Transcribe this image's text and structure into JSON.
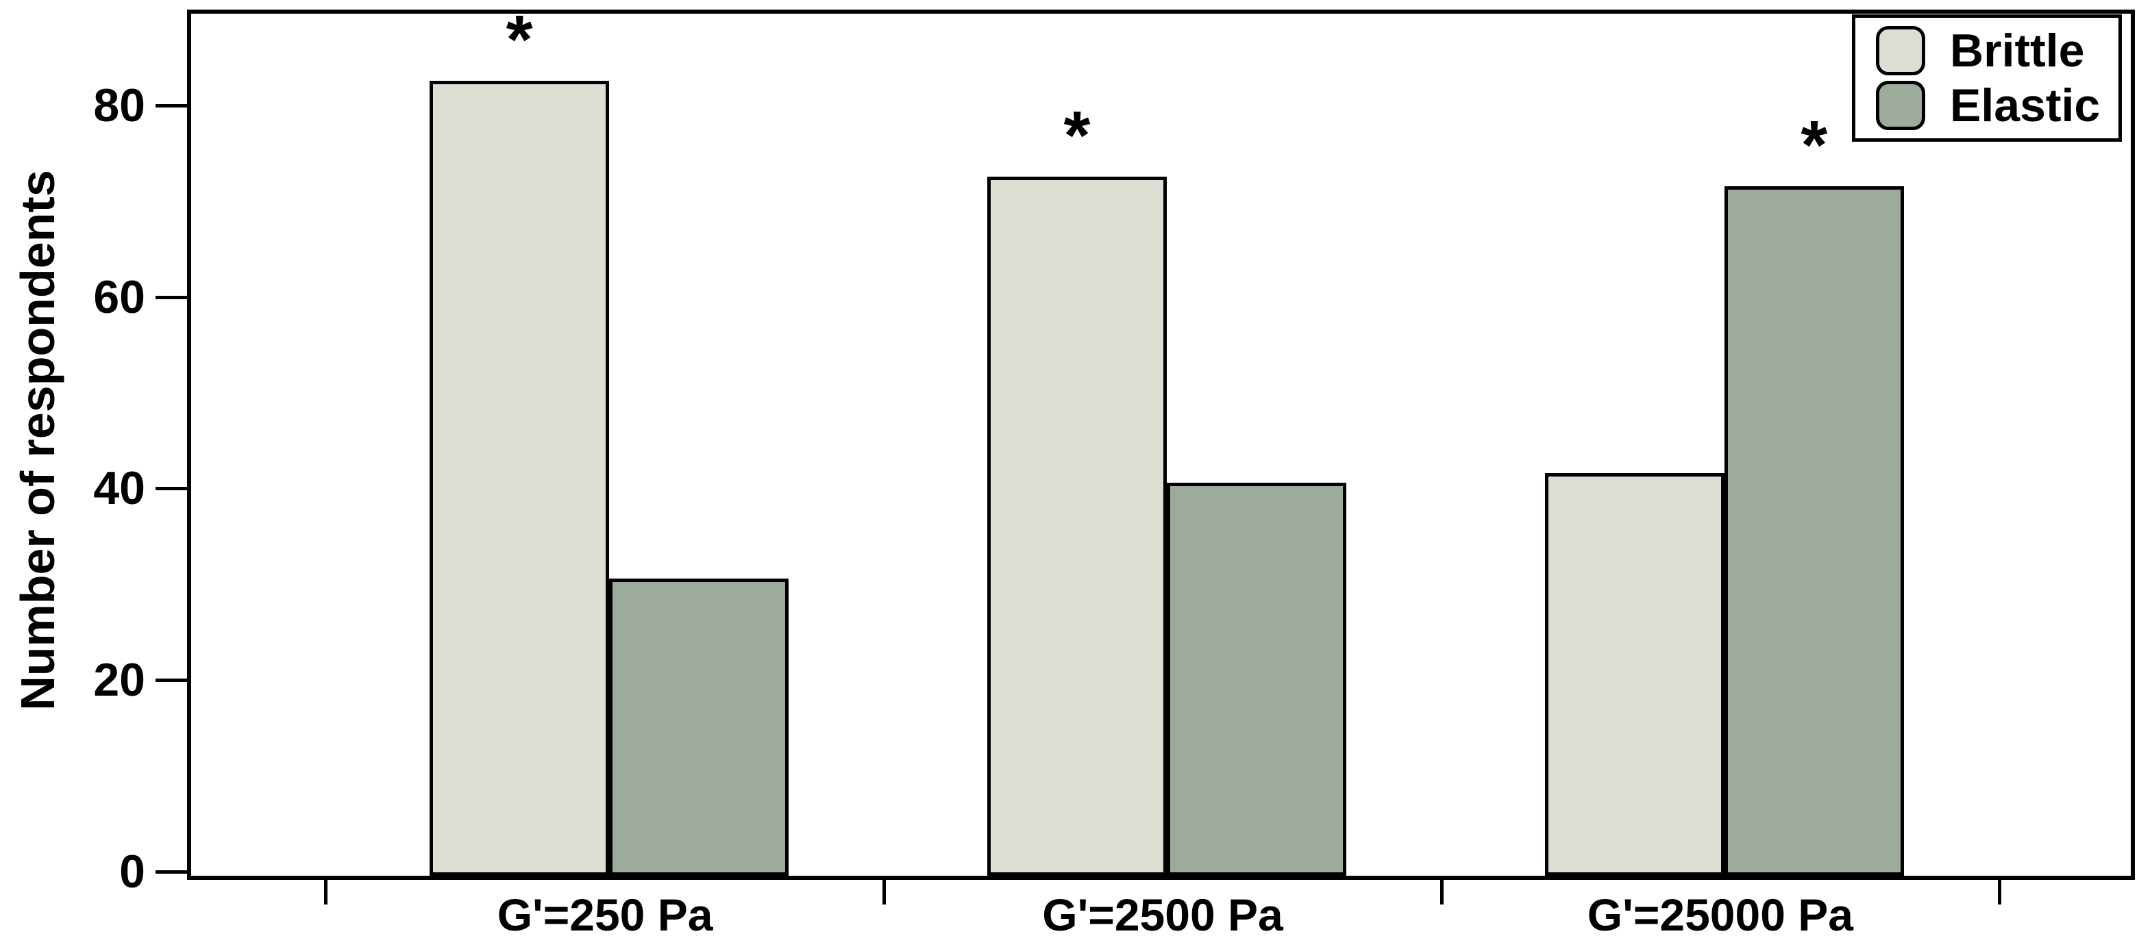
{
  "figure": {
    "background": "#ffffff",
    "frame_color": "#000000"
  },
  "chart_data": {
    "type": "bar",
    "title": "",
    "xlabel": "",
    "ylabel": "Number of respondents",
    "categories": [
      "G'=250 Pa",
      "G'=2500 Pa",
      "G'=25000 Pa"
    ],
    "series": [
      {
        "name": "Brittle",
        "color": "#dcded3",
        "values": [
          83,
          73,
          42
        ]
      },
      {
        "name": "Elastic",
        "color": "#9cab9c",
        "values": [
          31,
          41,
          72
        ]
      }
    ],
    "yticks": [
      0,
      20,
      40,
      60,
      80
    ],
    "ylim": [
      0,
      90
    ],
    "grid": false,
    "bar_outline_color": "#000000",
    "legend": {
      "position": "top-right",
      "entries": [
        "Brittle",
        "Elastic"
      ]
    },
    "annotations": [
      {
        "category_index": 0,
        "series_index": 0,
        "symbol": "*"
      },
      {
        "category_index": 1,
        "series_index": 0,
        "symbol": "*"
      },
      {
        "category_index": 2,
        "series_index": 1,
        "symbol": "*"
      }
    ]
  }
}
